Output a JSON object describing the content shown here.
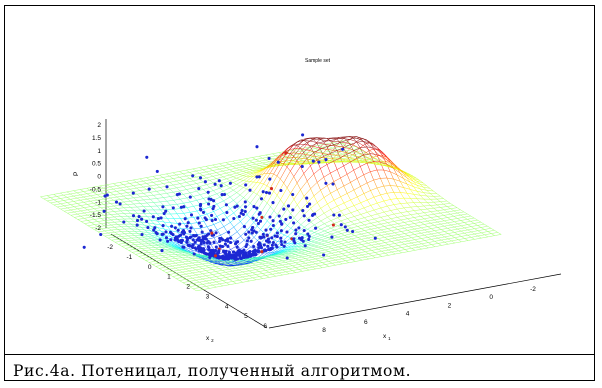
{
  "caption": "Рис.4а. Потеницал, полученный алгоритмом.",
  "chart_data": {
    "type": "surface3d",
    "title": "Sample set",
    "xlabel": "x",
    "xlabel_sub": "1",
    "ylabel": "x",
    "ylabel_sub": "2",
    "zlabel": "P",
    "x_ticks": [
      "-2",
      "0",
      "2",
      "4",
      "6",
      "8"
    ],
    "y_ticks": [
      "-2",
      "-1",
      "0",
      "1",
      "2",
      "3",
      "4",
      "5",
      "6"
    ],
    "z_ticks": [
      "2",
      "1.5",
      "1",
      "0.5",
      "0",
      "-0.5",
      "-1",
      "-1.5",
      "-2"
    ],
    "xlim": [
      -3,
      9
    ],
    "ylim": [
      -2,
      6
    ],
    "zlim": [
      -2,
      2
    ],
    "surface": {
      "colormap": "jet",
      "peaks": [
        {
          "x": 1.0,
          "y": 1.0,
          "height": 1.9
        },
        {
          "x": -1.0,
          "y": 1.5,
          "height": 1.8
        }
      ],
      "trough": {
        "x": 4.5,
        "y": 1.8,
        "depth": -1.6
      }
    },
    "scatter": {
      "color": "#1c28d2",
      "highlight_color": "#d22a1c",
      "cluster_center": {
        "x": 4.5,
        "y": 1.8
      },
      "count": 520
    }
  },
  "colors": {
    "mesh_low": "#3399ff",
    "mesh_mid": "#7fe07f",
    "mesh_high": "#ff2a2a",
    "points": "#1c28d2"
  }
}
